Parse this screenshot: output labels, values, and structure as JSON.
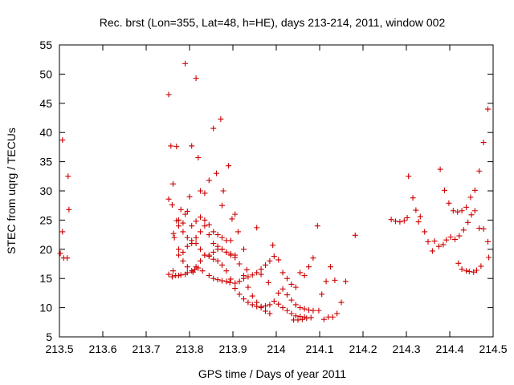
{
  "chart_data": {
    "type": "scatter",
    "title": "Rec. brst (Lon=355, Lat=48, h=HE), days 213-214, 2011, window 002",
    "xlabel": "GPS time / Days of year 2011",
    "ylabel": "STEC from uqrg / TECUs",
    "xlim": [
      213.5,
      214.5
    ],
    "ylim": [
      5,
      55
    ],
    "xticks": [
      213.5,
      213.6,
      213.7,
      213.8,
      213.9,
      214.0,
      214.1,
      214.2,
      214.3,
      214.4,
      214.5
    ],
    "xtick_labels": [
      "213.5",
      "213.6",
      "213.7",
      "213.8",
      "213.9",
      "214",
      "214.1",
      "214.2",
      "214.3",
      "214.4",
      "214.5"
    ],
    "yticks": [
      5,
      10,
      15,
      20,
      25,
      30,
      35,
      40,
      45,
      50,
      55
    ],
    "ytick_labels": [
      "5",
      "10",
      "15",
      "20",
      "25",
      "30",
      "35",
      "40",
      "45",
      "50",
      "55"
    ],
    "marker": "+",
    "marker_color": "#cc0000",
    "grid": false,
    "x": [
      213.502,
      213.507,
      213.507,
      213.51,
      213.518,
      213.52,
      213.522,
      213.752,
      213.757,
      213.762,
      213.763,
      213.765,
      213.77,
      213.775,
      213.752,
      213.76,
      213.762,
      213.768,
      213.775,
      213.78,
      213.79,
      213.795,
      213.752,
      213.76,
      213.77,
      213.78,
      213.79,
      213.8,
      213.808,
      213.812,
      213.82,
      213.83,
      213.845,
      213.855,
      213.865,
      213.875,
      213.885,
      213.893,
      213.905,
      213.915,
      213.925,
      213.935,
      213.945,
      213.955,
      213.965,
      213.975,
      213.985,
      213.995,
      213.775,
      213.785,
      213.795,
      213.805,
      213.815,
      213.825,
      213.835,
      213.845,
      213.855,
      213.865,
      213.875,
      213.885,
      213.895,
      213.905,
      213.915,
      213.925,
      213.935,
      213.945,
      213.955,
      213.965,
      213.975,
      213.985,
      213.995,
      213.785,
      213.795,
      213.805,
      213.815,
      213.825,
      213.835,
      213.845,
      213.855,
      213.865,
      213.875,
      213.885,
      213.895,
      213.905,
      213.915,
      213.925,
      213.935,
      213.945,
      213.955,
      213.965,
      213.975,
      213.985,
      213.775,
      213.785,
      213.795,
      213.805,
      213.815,
      213.825,
      213.835,
      213.845,
      213.855,
      213.865,
      213.875,
      213.885,
      213.895,
      213.905,
      213.775,
      213.785,
      213.795,
      213.805,
      213.815,
      213.825,
      213.835,
      213.845,
      213.855,
      213.865,
      213.875,
      213.885,
      213.895,
      213.79,
      213.815,
      213.805,
      213.82,
      213.825,
      213.835,
      213.845,
      213.855,
      213.862,
      213.872,
      213.878,
      213.89,
      213.875,
      213.898,
      213.905,
      213.912,
      213.925,
      213.932,
      213.955,
      213.965,
      213.982,
      213.992,
      214.005,
      214.015,
      214.025,
      214.035,
      214.045,
      214.055,
      214.065,
      214.075,
      214.085,
      214.095,
      214.105,
      214.115,
      214.125,
      214.135,
      214.005,
      214.015,
      214.025,
      214.035,
      214.045,
      214.055,
      214.065,
      214.075,
      214.085,
      214.005,
      214.015,
      214.025,
      214.035,
      214.045,
      214.055,
      214.065,
      214.04,
      214.05,
      214.06,
      214.07,
      214.08,
      214.098,
      214.11,
      214.12,
      214.13,
      214.14,
      214.15,
      214.16,
      214.182,
      214.265,
      214.275,
      214.285,
      214.295,
      214.302,
      214.305,
      214.315,
      214.322,
      214.328,
      214.332,
      214.342,
      214.35,
      214.36,
      214.365,
      214.375,
      214.385,
      214.392,
      214.402,
      214.412,
      214.422,
      214.432,
      214.442,
      214.45,
      214.458,
      214.468,
      214.478,
      214.488,
      214.378,
      214.388,
      214.398,
      214.408,
      214.418,
      214.428,
      214.438,
      214.448,
      214.458,
      214.468,
      214.478,
      214.488,
      214.42,
      214.428,
      214.438,
      214.445,
      214.455,
      214.462,
      214.472,
      214.49
    ],
    "y": [
      19.3,
      38.7,
      23.0,
      18.5,
      18.5,
      32.5,
      26.8,
      46.5,
      37.7,
      31.2,
      22.7,
      22.0,
      37.6,
      25.0,
      15.7,
      15.3,
      16.3,
      15.5,
      15.5,
      15.6,
      15.7,
      16.0,
      28.6,
      27.6,
      24.9,
      26.8,
      26.0,
      29.0,
      16.1,
      16.5,
      16.8,
      16.3,
      15.5,
      15.0,
      14.8,
      14.6,
      14.5,
      14.3,
      14.2,
      14.5,
      15.0,
      15.3,
      15.6,
      16.0,
      16.6,
      17.3,
      18.0,
      18.8,
      20.0,
      18.0,
      17.0,
      16.3,
      17.0,
      18.0,
      19.0,
      18.8,
      18.3,
      18.0,
      17.3,
      16.3,
      14.9,
      13.3,
      12.3,
      11.5,
      10.9,
      10.5,
      10.2,
      10.2,
      10.3,
      10.5,
      11.1,
      23.0,
      22.0,
      21.0,
      22.0,
      23.0,
      24.0,
      22.5,
      21.0,
      20.5,
      20.0,
      19.5,
      19.0,
      18.6,
      17.5,
      15.5,
      13.5,
      12.0,
      10.9,
      10.0,
      9.4,
      9.0,
      19.0,
      19.5,
      20.5,
      21.5,
      21.0,
      20.0,
      19.0,
      19.0,
      19.5,
      20.0,
      20.0,
      19.5,
      19.2,
      19.0,
      24.0,
      24.5,
      26.5,
      24.0,
      24.8,
      25.5,
      25.0,
      24.2,
      23.0,
      22.5,
      22.0,
      21.5,
      21.5,
      51.8,
      49.3,
      37.7,
      35.7,
      30.0,
      29.6,
      31.8,
      40.7,
      33.0,
      42.3,
      30.0,
      34.3,
      27.5,
      25.2,
      26.0,
      23.0,
      20.0,
      16.5,
      23.7,
      15.7,
      14.3,
      20.7,
      18.2,
      16.0,
      15.0,
      14.0,
      13.5,
      16.0,
      15.5,
      17.0,
      18.5,
      24.0,
      12.3,
      14.5,
      17.0,
      14.7,
      12.5,
      13.2,
      12.2,
      11.3,
      10.5,
      10.0,
      9.8,
      9.6,
      9.5,
      10.6,
      10.0,
      9.5,
      9.0,
      8.6,
      8.5,
      8.4,
      7.9,
      7.9,
      8.0,
      8.2,
      8.3,
      9.5,
      8.0,
      8.4,
      8.4,
      9.0,
      10.9,
      14.5,
      22.4,
      25.1,
      24.8,
      24.7,
      24.9,
      25.4,
      32.5,
      28.8,
      26.7,
      24.7,
      25.6,
      23.0,
      21.3,
      19.7,
      21.4,
      20.5,
      20.8,
      21.6,
      22.1,
      21.7,
      22.3,
      23.3,
      24.6,
      25.9,
      26.6,
      23.6,
      23.5,
      21.3,
      33.7,
      30.1,
      27.9,
      26.6,
      26.4,
      26.6,
      27.2,
      28.9,
      30.1,
      33.4,
      38.3,
      44.0,
      17.6,
      16.6,
      16.3,
      16.2,
      16.1,
      16.4,
      17.1,
      18.6
    ]
  }
}
